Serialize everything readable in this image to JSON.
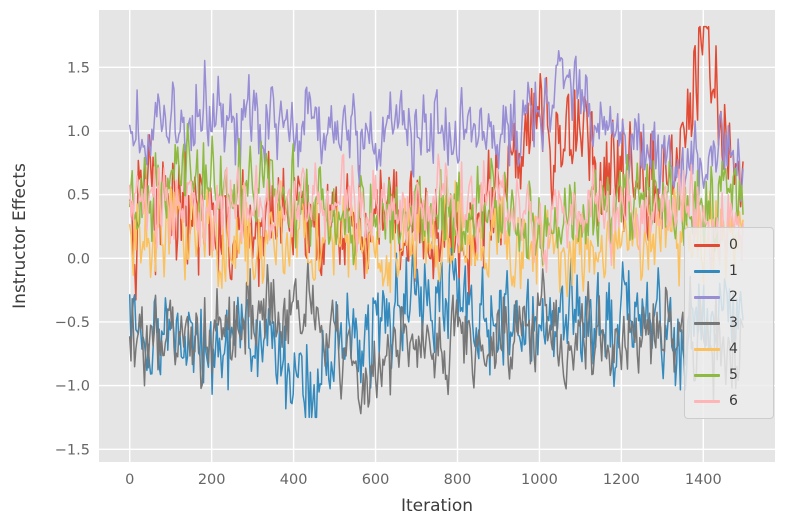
{
  "style": {
    "fig_bg": "#ffffff",
    "plot_bg": "#e5e5e5",
    "grid_color": "#ffffff",
    "tick_color": "#666666",
    "label_color": "#3c3c3c",
    "legend_bg": "#ececec",
    "legend_border": "#cccccc"
  },
  "chart_data": {
    "type": "line",
    "title": "",
    "xlabel": "Iteration",
    "ylabel": "Instructor Effects",
    "xlim": [
      -75,
      1575
    ],
    "ylim": [
      -1.6,
      1.95
    ],
    "x_ticks": [
      0,
      200,
      400,
      600,
      800,
      1000,
      1200,
      1400
    ],
    "y_ticks": [
      -1.5,
      -1.0,
      -0.5,
      0.0,
      0.5,
      1.0,
      1.5
    ],
    "y_tick_labels": [
      "−1.5",
      "−1.0",
      "−0.5",
      "0.0",
      "0.5",
      "1.0",
      "1.5"
    ],
    "n_points": 1500,
    "grid": true,
    "legend_position": "center-right",
    "series": [
      {
        "name": "0",
        "color": "#E24A33",
        "mean": 0.45,
        "std": 0.28,
        "min": -0.35,
        "max": 1.82,
        "events": [
          {
            "x": 1020,
            "dy": 0.55,
            "width": 90
          },
          {
            "x": 1400,
            "dy": 1.05,
            "width": 48
          }
        ]
      },
      {
        "name": "1",
        "color": "#348ABD",
        "mean": -0.5,
        "std": 0.22,
        "min": -1.25,
        "max": 0.08,
        "events": [
          {
            "x": 430,
            "dy": -0.5,
            "width": 55
          },
          {
            "x": 1320,
            "dy": -0.35,
            "width": 60
          }
        ]
      },
      {
        "name": "2",
        "color": "#988ED5",
        "mean": 1.0,
        "std": 0.18,
        "min": 0.45,
        "max": 1.78,
        "events": [
          {
            "x": 1080,
            "dy": 0.45,
            "width": 60
          }
        ]
      },
      {
        "name": "3",
        "color": "#777777",
        "mean": -0.55,
        "std": 0.2,
        "min": -1.22,
        "max": -0.02,
        "events": [
          {
            "x": 560,
            "dy": -0.35,
            "width": 70
          }
        ]
      },
      {
        "name": "4",
        "color": "#FBC15E",
        "mean": 0.2,
        "std": 0.22,
        "min": -0.5,
        "max": 0.9,
        "events": []
      },
      {
        "name": "5",
        "color": "#8EBA42",
        "mean": 0.52,
        "std": 0.2,
        "min": -0.05,
        "max": 1.1,
        "events": []
      },
      {
        "name": "6",
        "color": "#FFB5B8",
        "mean": 0.42,
        "std": 0.18,
        "min": -0.15,
        "max": 0.95,
        "events": []
      }
    ]
  }
}
